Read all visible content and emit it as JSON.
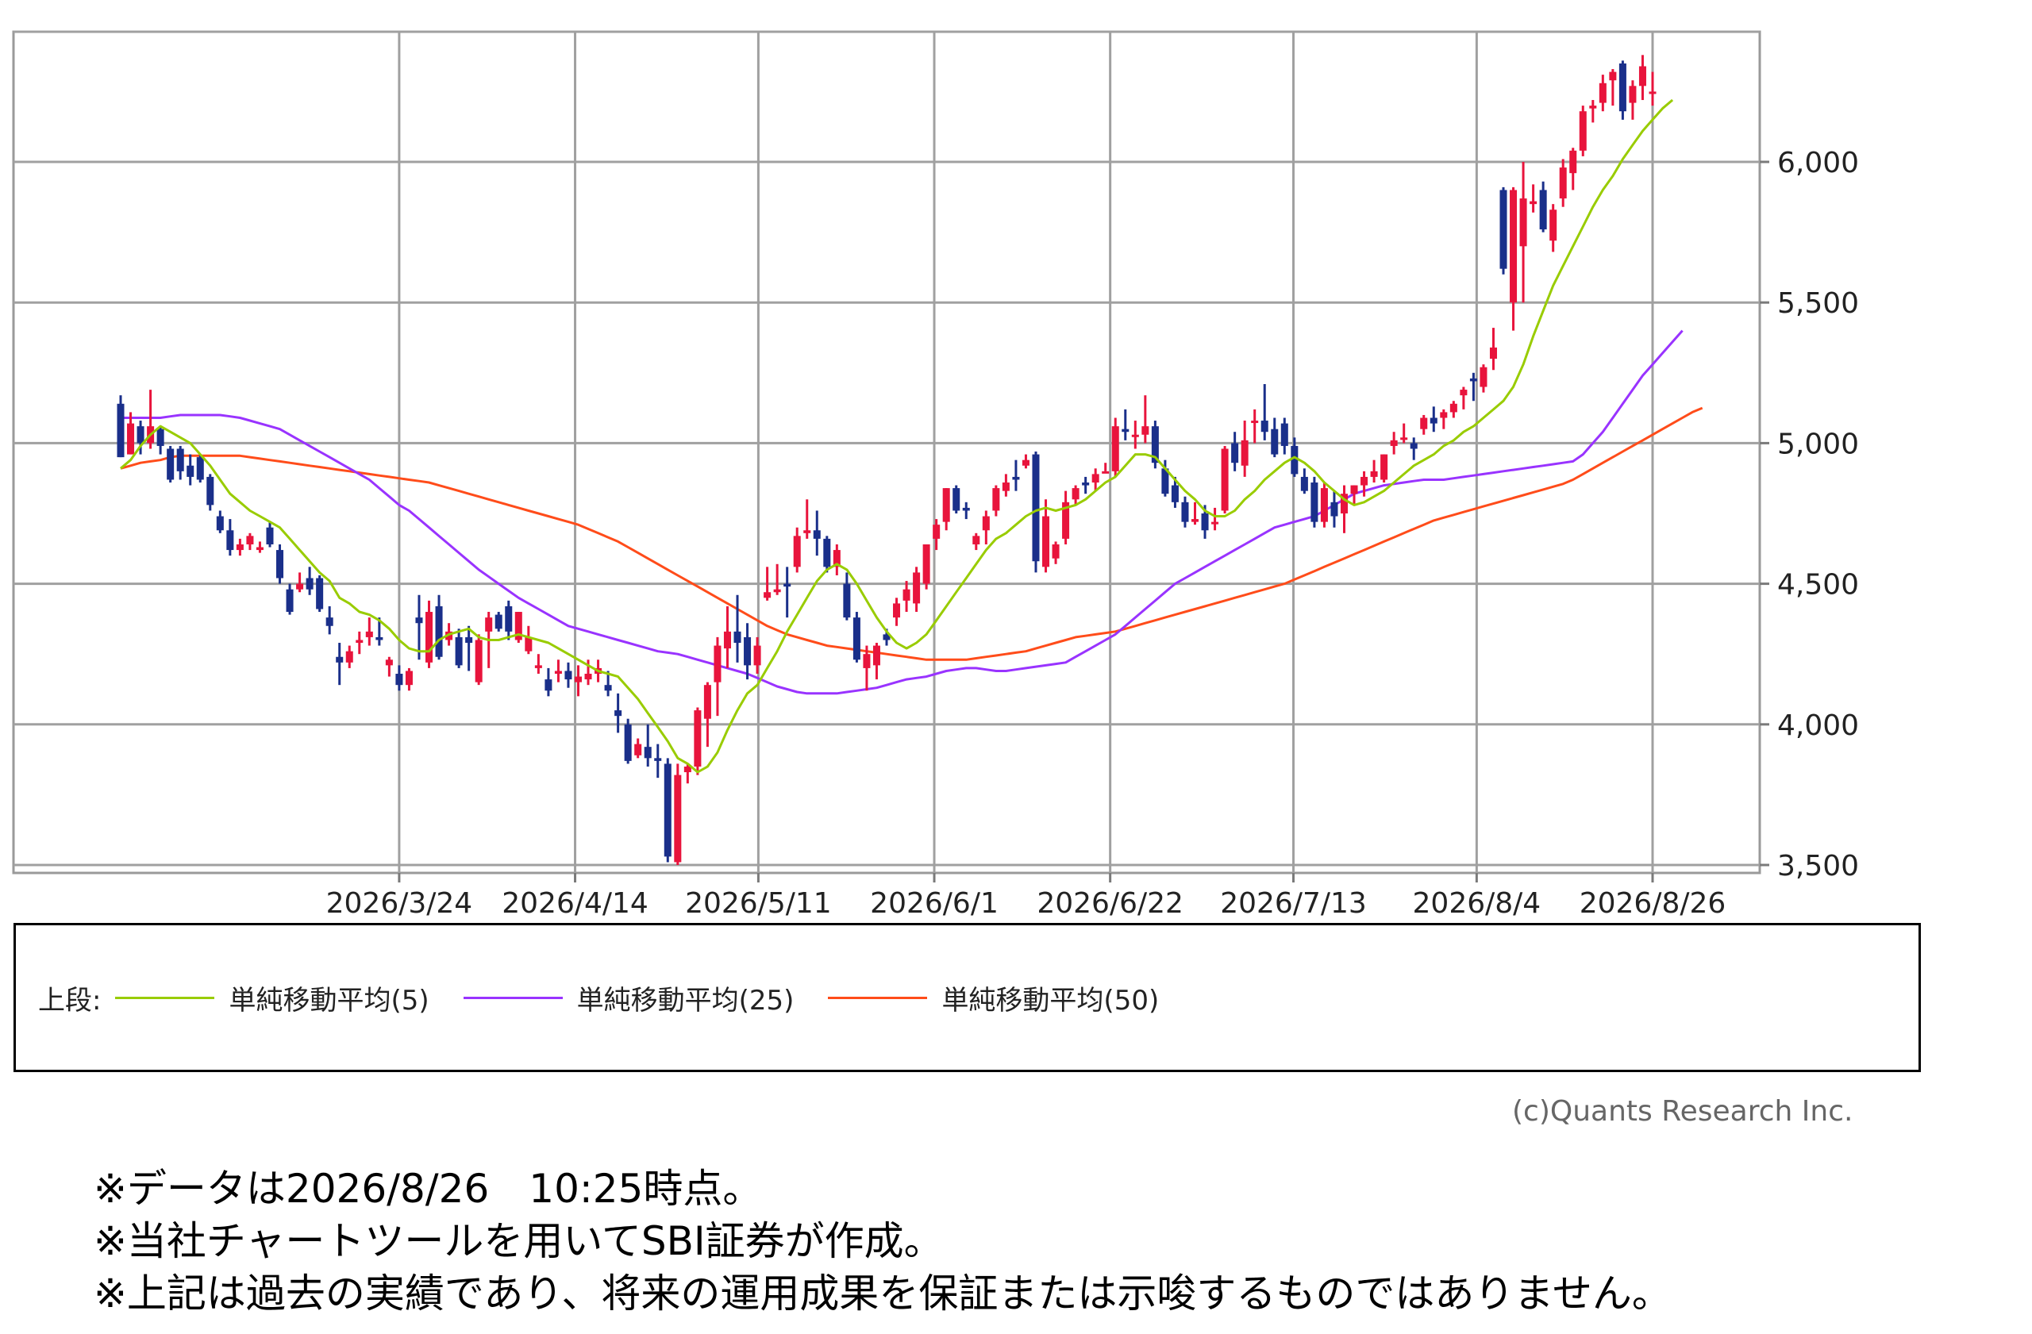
{
  "chart_data": {
    "type": "candlestick",
    "y_ticks": [
      "3,500",
      "4,000",
      "4,500",
      "5,000",
      "5,500",
      "6,000"
    ],
    "ylim": [
      3480,
      6420
    ],
    "x_ticks": [
      "2026/3/24",
      "2026/4/14",
      "2026/5/11",
      "2026/6/1",
      "2026/6/22",
      "2026/7/13",
      "2026/8/4",
      "2026/8/26"
    ],
    "grid": true,
    "colors": {
      "up": "#e8143c",
      "down": "#1a2f8a",
      "ma5": "#99cc00",
      "ma25": "#9933ff",
      "ma50": "#ff4c1a"
    },
    "candles": [
      [
        5140,
        5170,
        4950,
        4950
      ],
      [
        4960,
        5110,
        4960,
        5070
      ],
      [
        5060,
        5080,
        4960,
        5000
      ],
      [
        5000,
        5190,
        4980,
        5060
      ],
      [
        5050,
        5060,
        4960,
        4990
      ],
      [
        4980,
        4990,
        4860,
        4870
      ],
      [
        4980,
        4990,
        4870,
        4900
      ],
      [
        4920,
        4960,
        4850,
        4880
      ],
      [
        4950,
        4960,
        4860,
        4870
      ],
      [
        4880,
        4890,
        4760,
        4780
      ],
      [
        4740,
        4760,
        4680,
        4690
      ],
      [
        4690,
        4730,
        4600,
        4620
      ],
      [
        4620,
        4660,
        4600,
        4640
      ],
      [
        4640,
        4680,
        4620,
        4670
      ],
      [
        4620,
        4650,
        4610,
        4630
      ],
      [
        4700,
        4720,
        4630,
        4640
      ],
      [
        4620,
        4640,
        4500,
        4520
      ],
      [
        4480,
        4500,
        4390,
        4400
      ],
      [
        4480,
        4540,
        4470,
        4500
      ],
      [
        4520,
        4560,
        4460,
        4480
      ],
      [
        4520,
        4530,
        4400,
        4410
      ],
      [
        4380,
        4420,
        4320,
        4350
      ],
      [
        4240,
        4290,
        4140,
        4220
      ],
      [
        4220,
        4280,
        4200,
        4260
      ],
      [
        4290,
        4330,
        4250,
        4300
      ],
      [
        4310,
        4380,
        4280,
        4330
      ],
      [
        4310,
        4380,
        4280,
        4300
      ],
      [
        4210,
        4240,
        4170,
        4230
      ],
      [
        4180,
        4210,
        4120,
        4140
      ],
      [
        4140,
        4200,
        4120,
        4190
      ],
      [
        4380,
        4460,
        4230,
        4360
      ],
      [
        4220,
        4440,
        4200,
        4400
      ],
      [
        4420,
        4460,
        4230,
        4240
      ],
      [
        4300,
        4360,
        4280,
        4330
      ],
      [
        4310,
        4340,
        4200,
        4210
      ],
      [
        4310,
        4350,
        4190,
        4290
      ],
      [
        4150,
        4320,
        4140,
        4300
      ],
      [
        4330,
        4400,
        4200,
        4380
      ],
      [
        4390,
        4400,
        4330,
        4340
      ],
      [
        4420,
        4440,
        4300,
        4330
      ],
      [
        4300,
        4400,
        4290,
        4400
      ],
      [
        4260,
        4350,
        4250,
        4310
      ],
      [
        4200,
        4250,
        4180,
        4210
      ],
      [
        4160,
        4200,
        4100,
        4120
      ],
      [
        4180,
        4230,
        4150,
        4190
      ],
      [
        4190,
        4220,
        4130,
        4160
      ],
      [
        4150,
        4210,
        4100,
        4170
      ],
      [
        4160,
        4230,
        4140,
        4180
      ],
      [
        4180,
        4230,
        4150,
        4200
      ],
      [
        4140,
        4190,
        4100,
        4120
      ],
      [
        4050,
        4110,
        3970,
        4030
      ],
      [
        4000,
        4020,
        3860,
        3870
      ],
      [
        3890,
        3950,
        3880,
        3930
      ],
      [
        3920,
        4000,
        3850,
        3880
      ],
      [
        3880,
        3930,
        3810,
        3870
      ],
      [
        3860,
        3880,
        3510,
        3530
      ],
      [
        3510,
        3860,
        3500,
        3820
      ],
      [
        3830,
        3860,
        3790,
        3850
      ],
      [
        3850,
        4060,
        3820,
        4050
      ],
      [
        4020,
        4150,
        3920,
        4140
      ],
      [
        4150,
        4310,
        4030,
        4280
      ],
      [
        4270,
        4420,
        4200,
        4330
      ],
      [
        4330,
        4460,
        4220,
        4290
      ],
      [
        4310,
        4360,
        4160,
        4210
      ],
      [
        4210,
        4310,
        4180,
        4280
      ],
      [
        4450,
        4560,
        4440,
        4470
      ],
      [
        4470,
        4570,
        4460,
        4480
      ],
      [
        4500,
        4560,
        4380,
        4490
      ],
      [
        4560,
        4700,
        4540,
        4670
      ],
      [
        4680,
        4800,
        4660,
        4690
      ],
      [
        4690,
        4760,
        4600,
        4660
      ],
      [
        4660,
        4670,
        4540,
        4560
      ],
      [
        4560,
        4640,
        4530,
        4620
      ],
      [
        4500,
        4540,
        4370,
        4380
      ],
      [
        4380,
        4400,
        4220,
        4230
      ],
      [
        4200,
        4280,
        4120,
        4250
      ],
      [
        4210,
        4290,
        4160,
        4280
      ],
      [
        4320,
        4340,
        4280,
        4300
      ],
      [
        4380,
        4450,
        4350,
        4430
      ],
      [
        4440,
        4510,
        4400,
        4480
      ],
      [
        4430,
        4560,
        4400,
        4540
      ],
      [
        4500,
        4640,
        4480,
        4640
      ],
      [
        4660,
        4730,
        4620,
        4710
      ],
      [
        4720,
        4840,
        4690,
        4840
      ],
      [
        4840,
        4850,
        4750,
        4760
      ],
      [
        4770,
        4790,
        4730,
        4760
      ],
      [
        4640,
        4680,
        4620,
        4670
      ],
      [
        4690,
        4760,
        4640,
        4740
      ],
      [
        4760,
        4850,
        4740,
        4840
      ],
      [
        4830,
        4890,
        4810,
        4860
      ],
      [
        4880,
        4940,
        4830,
        4870
      ],
      [
        4920,
        4960,
        4910,
        4940
      ],
      [
        4960,
        4970,
        4540,
        4580
      ],
      [
        4560,
        4800,
        4540,
        4740
      ],
      [
        4590,
        4650,
        4570,
        4640
      ],
      [
        4660,
        4830,
        4640,
        4790
      ],
      [
        4800,
        4850,
        4780,
        4840
      ],
      [
        4860,
        4880,
        4820,
        4850
      ],
      [
        4860,
        4910,
        4830,
        4890
      ],
      [
        4900,
        4930,
        4900,
        4900
      ],
      [
        4900,
        5090,
        4880,
        5060
      ],
      [
        5050,
        5120,
        5010,
        5040
      ],
      [
        5030,
        5080,
        4980,
        5030
      ],
      [
        5030,
        5170,
        5000,
        5060
      ],
      [
        5060,
        5080,
        4910,
        4930
      ],
      [
        4910,
        4940,
        4810,
        4820
      ],
      [
        4850,
        4880,
        4770,
        4790
      ],
      [
        4790,
        4810,
        4700,
        4720
      ],
      [
        4720,
        4790,
        4710,
        4730
      ],
      [
        4750,
        4780,
        4660,
        4690
      ],
      [
        4720,
        4770,
        4690,
        4720
      ],
      [
        4760,
        4990,
        4750,
        4980
      ],
      [
        5000,
        5040,
        4900,
        4930
      ],
      [
        4920,
        5080,
        4880,
        5010
      ],
      [
        5080,
        5120,
        5000,
        5080
      ],
      [
        5080,
        5210,
        5010,
        5040
      ],
      [
        5050,
        5090,
        4950,
        4960
      ],
      [
        5070,
        5090,
        4960,
        4990
      ],
      [
        4990,
        5020,
        4880,
        4890
      ],
      [
        4880,
        4910,
        4820,
        4830
      ],
      [
        4860,
        4880,
        4700,
        4720
      ],
      [
        4720,
        4860,
        4700,
        4840
      ],
      [
        4790,
        4830,
        4700,
        4740
      ],
      [
        4750,
        4850,
        4680,
        4820
      ],
      [
        4820,
        4850,
        4780,
        4850
      ],
      [
        4850,
        4900,
        4810,
        4880
      ],
      [
        4880,
        4940,
        4860,
        4900
      ],
      [
        4870,
        4960,
        4860,
        4960
      ],
      [
        4990,
        5040,
        4960,
        5010
      ],
      [
        5020,
        5070,
        5000,
        5020
      ],
      [
        5000,
        5020,
        4940,
        4980
      ],
      [
        5050,
        5100,
        5030,
        5090
      ],
      [
        5090,
        5130,
        5040,
        5070
      ],
      [
        5090,
        5120,
        5050,
        5110
      ],
      [
        5110,
        5150,
        5090,
        5140
      ],
      [
        5170,
        5200,
        5120,
        5190
      ],
      [
        5230,
        5250,
        5150,
        5220
      ],
      [
        5200,
        5280,
        5180,
        5270
      ],
      [
        5300,
        5410,
        5260,
        5340
      ],
      [
        5900,
        5910,
        5600,
        5620
      ],
      [
        5500,
        5910,
        5400,
        5900
      ],
      [
        5700,
        6000,
        5500,
        5870
      ],
      [
        5850,
        5920,
        5820,
        5860
      ],
      [
        5900,
        5930,
        5750,
        5760
      ],
      [
        5720,
        5850,
        5680,
        5830
      ],
      [
        5870,
        6010,
        5840,
        5980
      ],
      [
        5960,
        6050,
        5900,
        6040
      ],
      [
        6040,
        6200,
        6020,
        6180
      ],
      [
        6190,
        6220,
        6140,
        6200
      ],
      [
        6210,
        6310,
        6180,
        6280
      ],
      [
        6290,
        6330,
        6200,
        6320
      ],
      [
        6350,
        6360,
        6150,
        6180
      ],
      [
        6210,
        6290,
        6150,
        6270
      ],
      [
        6270,
        6380,
        6220,
        6340
      ],
      [
        6250,
        6320,
        6200,
        6250
      ]
    ],
    "sma5": [
      4910,
      4940,
      4990,
      5030,
      5060,
      5040,
      5020,
      5000,
      4960,
      4920,
      4870,
      4820,
      4790,
      4760,
      4740,
      4720,
      4700,
      4660,
      4620,
      4580,
      4540,
      4510,
      4450,
      4430,
      4400,
      4390,
      4370,
      4340,
      4300,
      4270,
      4260,
      4260,
      4300,
      4320,
      4330,
      4340,
      4310,
      4300,
      4300,
      4310,
      4320,
      4310,
      4300,
      4290,
      4270,
      4250,
      4230,
      4210,
      4190,
      4180,
      4170,
      4130,
      4090,
      4040,
      3990,
      3940,
      3880,
      3860,
      3830,
      3850,
      3900,
      3980,
      4050,
      4110,
      4140,
      4200,
      4260,
      4330,
      4390,
      4450,
      4510,
      4550,
      4570,
      4550,
      4500,
      4440,
      4380,
      4330,
      4290,
      4270,
      4290,
      4320,
      4370,
      4420,
      4470,
      4520,
      4570,
      4620,
      4660,
      4680,
      4710,
      4740,
      4760,
      4770,
      4760,
      4770,
      4780,
      4800,
      4830,
      4860,
      4880,
      4920,
      4960,
      4960,
      4950,
      4910,
      4870,
      4830,
      4800,
      4760,
      4740,
      4740,
      4760,
      4800,
      4830,
      4870,
      4900,
      4930,
      4950,
      4930,
      4900,
      4860,
      4830,
      4800,
      4780,
      4790,
      4810,
      4830,
      4860,
      4890,
      4920,
      4940,
      4960,
      4990,
      5010,
      5040,
      5060,
      5090,
      5120,
      5150,
      5200,
      5280,
      5380,
      5470,
      5560,
      5630,
      5700,
      5770,
      5840,
      5900,
      5950,
      6010,
      6060,
      6110,
      6150,
      6190,
      6220
    ],
    "sma25": [
      5090,
      5090,
      5090,
      5090,
      5090,
      5095,
      5100,
      5100,
      5100,
      5100,
      5100,
      5095,
      5090,
      5080,
      5070,
      5060,
      5050,
      5030,
      5010,
      4990,
      4970,
      4950,
      4930,
      4910,
      4890,
      4870,
      4840,
      4810,
      4780,
      4760,
      4730,
      4700,
      4670,
      4640,
      4610,
      4580,
      4550,
      4525,
      4500,
      4475,
      4450,
      4430,
      4410,
      4390,
      4370,
      4350,
      4340,
      4330,
      4320,
      4310,
      4300,
      4290,
      4280,
      4270,
      4260,
      4255,
      4250,
      4240,
      4230,
      4220,
      4210,
      4200,
      4190,
      4180,
      4165,
      4150,
      4135,
      4125,
      4115,
      4110,
      4110,
      4110,
      4110,
      4115,
      4120,
      4125,
      4130,
      4140,
      4150,
      4160,
      4165,
      4170,
      4180,
      4190,
      4195,
      4200,
      4200,
      4195,
      4190,
      4190,
      4195,
      4200,
      4205,
      4210,
      4215,
      4220,
      4240,
      4260,
      4280,
      4300,
      4320,
      4350,
      4380,
      4410,
      4440,
      4470,
      4500,
      4520,
      4540,
      4560,
      4580,
      4600,
      4620,
      4640,
      4660,
      4680,
      4700,
      4710,
      4720,
      4730,
      4740,
      4760,
      4780,
      4800,
      4820,
      4830,
      4840,
      4850,
      4855,
      4860,
      4865,
      4870,
      4870,
      4870,
      4875,
      4880,
      4885,
      4890,
      4895,
      4900,
      4905,
      4910,
      4915,
      4920,
      4925,
      4930,
      4935,
      4960,
      5000,
      5040,
      5090,
      5140,
      5190,
      5240,
      5280,
      5320,
      5360,
      5400
    ],
    "sma50": [
      4910,
      4920,
      4930,
      4935,
      4940,
      4950,
      4955,
      4955,
      4955,
      4955,
      4955,
      4955,
      4955,
      4950,
      4945,
      4940,
      4935,
      4930,
      4925,
      4920,
      4915,
      4910,
      4905,
      4900,
      4895,
      4890,
      4885,
      4880,
      4875,
      4870,
      4865,
      4860,
      4850,
      4840,
      4830,
      4820,
      4810,
      4800,
      4790,
      4780,
      4770,
      4760,
      4750,
      4740,
      4730,
      4720,
      4710,
      4695,
      4680,
      4665,
      4650,
      4630,
      4610,
      4590,
      4570,
      4550,
      4530,
      4510,
      4490,
      4470,
      4450,
      4430,
      4410,
      4390,
      4370,
      4350,
      4335,
      4320,
      4310,
      4300,
      4290,
      4280,
      4275,
      4270,
      4265,
      4260,
      4255,
      4250,
      4245,
      4240,
      4235,
      4230,
      4230,
      4230,
      4230,
      4230,
      4235,
      4240,
      4245,
      4250,
      4255,
      4260,
      4270,
      4280,
      4290,
      4300,
      4310,
      4315,
      4320,
      4325,
      4330,
      4340,
      4350,
      4360,
      4370,
      4380,
      4390,
      4400,
      4410,
      4420,
      4430,
      4440,
      4450,
      4460,
      4470,
      4480,
      4490,
      4500,
      4515,
      4530,
      4545,
      4560,
      4575,
      4590,
      4605,
      4620,
      4635,
      4650,
      4665,
      4680,
      4695,
      4710,
      4725,
      4735,
      4745,
      4755,
      4765,
      4775,
      4785,
      4795,
      4805,
      4815,
      4825,
      4835,
      4845,
      4855,
      4870,
      4890,
      4910,
      4930,
      4950,
      4970,
      4990,
      5010,
      5030,
      5050,
      5070,
      5090,
      5110,
      5125
    ]
  },
  "legend": {
    "prefix": "上段:",
    "items": [
      {
        "label": "単純移動平均(5)",
        "color": "#99cc00"
      },
      {
        "label": "単純移動平均(25)",
        "color": "#9933ff"
      },
      {
        "label": "単純移動平均(50)",
        "color": "#ff4c1a"
      }
    ]
  },
  "copyright": "(c)Quants Research Inc.",
  "notes": [
    "※データは2026/8/26　10:25時点。",
    "※当社チャートツールを用いてSBI証券が作成。",
    "※上記は過去の実績であり、将来の運用成果を保証または示唆するものではありません。"
  ]
}
